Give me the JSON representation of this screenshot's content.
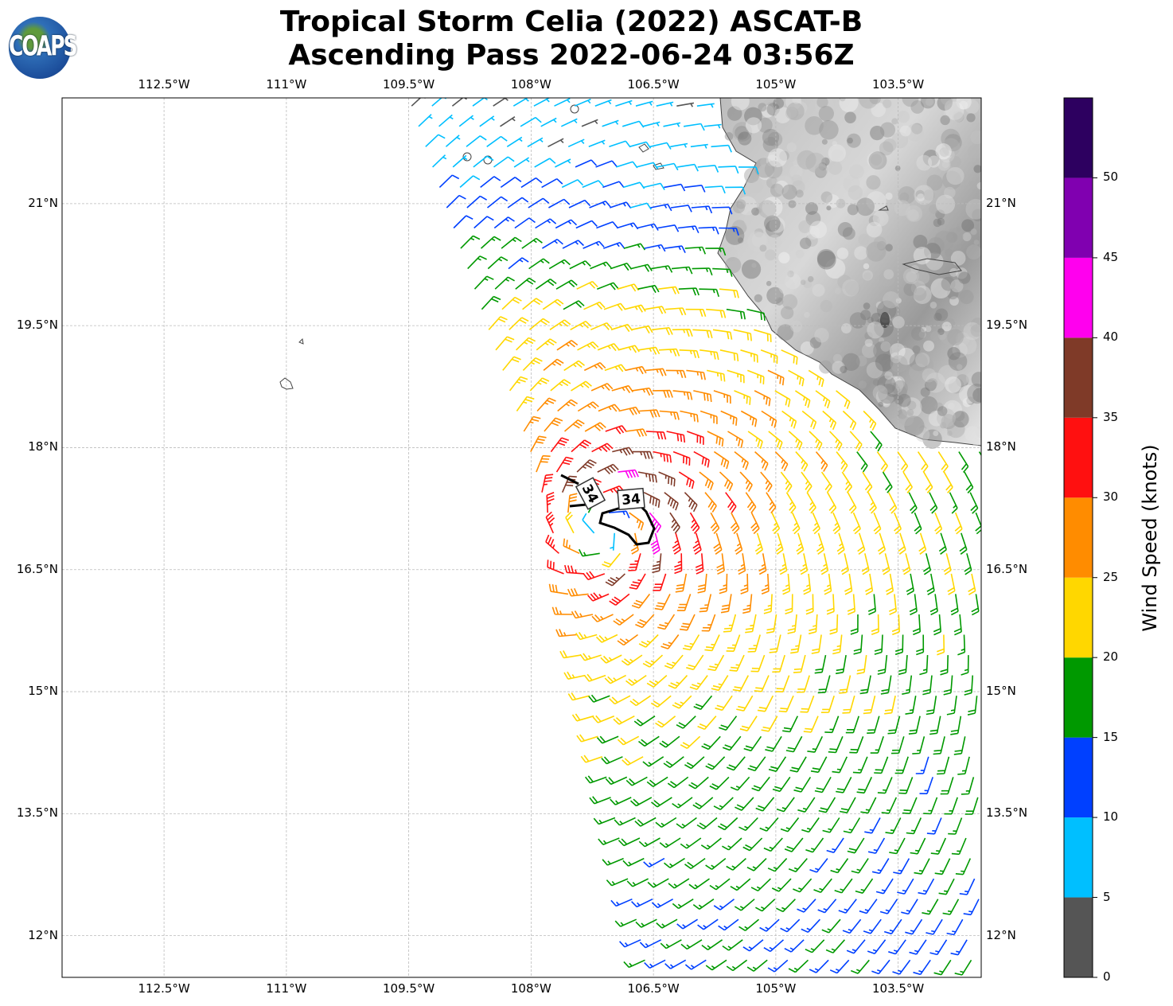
{
  "header": {
    "title_line1": "Tropical Storm Celia (2022) ASCAT-B",
    "title_line2": "Ascending Pass 2022-06-24 03:56Z",
    "logo_text": "COAPS"
  },
  "map": {
    "lon_ticks": [
      {
        "value": 112.5,
        "label": "112.5°W"
      },
      {
        "value": 111.0,
        "label": "111°W"
      },
      {
        "value": 109.5,
        "label": "109.5°W"
      },
      {
        "value": 108.0,
        "label": "108°W"
      },
      {
        "value": 106.5,
        "label": "106.5°W"
      },
      {
        "value": 105.0,
        "label": "105°W"
      },
      {
        "value": 103.5,
        "label": "103.5°W"
      }
    ],
    "lat_ticks": [
      {
        "value": 21.0,
        "label": "21°N"
      },
      {
        "value": 19.5,
        "label": "19.5°N"
      },
      {
        "value": 18.0,
        "label": "18°N"
      },
      {
        "value": 16.5,
        "label": "16.5°N"
      },
      {
        "value": 15.0,
        "label": "15°N"
      },
      {
        "value": 13.5,
        "label": "13.5°N"
      },
      {
        "value": 12.0,
        "label": "12°N"
      }
    ],
    "contour_label": "34",
    "storm_center": {
      "lat": 17.0,
      "lon_w": 107.1
    },
    "max_wind_kt": 38
  },
  "colorbar": {
    "title": "Wind Speed (knots)",
    "ticks": [
      "0",
      "5",
      "10",
      "15",
      "20",
      "25",
      "30",
      "35",
      "40",
      "45",
      "50"
    ],
    "colors": [
      "#555555",
      "#00bfff",
      "#0040ff",
      "#009900",
      "#ffd700",
      "#ff8c00",
      "#ff1010",
      "#7f3a28",
      "#ff00ee",
      "#8000b0",
      "#2d0060"
    ]
  }
}
